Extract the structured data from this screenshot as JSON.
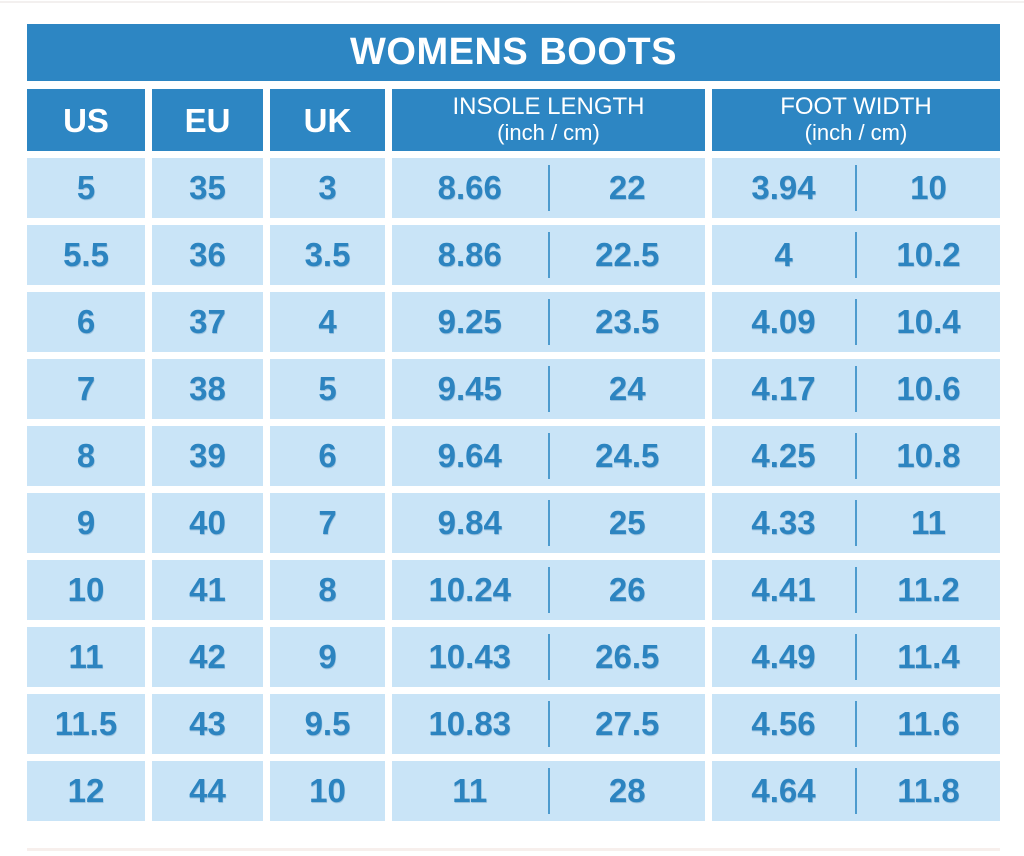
{
  "title": "WOMENS BOOTS",
  "colors": {
    "header_bg": "#2D86C3",
    "header_text": "#FFFFFF",
    "cell_bg": "#C9E4F7",
    "cell_text": "#2C84C0",
    "divider": "#4D9BCE"
  },
  "table": {
    "columns": {
      "us": "US",
      "eu": "EU",
      "uk": "UK",
      "insole": "INSOLE LENGTH",
      "insole_sub": "(inch / cm)",
      "foot": "FOOT WIDTH",
      "foot_sub": "(inch / cm)"
    },
    "rows": [
      {
        "us": "5",
        "eu": "35",
        "uk": "3",
        "insole_in": "8.66",
        "insole_cm": "22",
        "foot_in": "3.94",
        "foot_cm": "10"
      },
      {
        "us": "5.5",
        "eu": "36",
        "uk": "3.5",
        "insole_in": "8.86",
        "insole_cm": "22.5",
        "foot_in": "4",
        "foot_cm": "10.2"
      },
      {
        "us": "6",
        "eu": "37",
        "uk": "4",
        "insole_in": "9.25",
        "insole_cm": "23.5",
        "foot_in": "4.09",
        "foot_cm": "10.4"
      },
      {
        "us": "7",
        "eu": "38",
        "uk": "5",
        "insole_in": "9.45",
        "insole_cm": "24",
        "foot_in": "4.17",
        "foot_cm": "10.6"
      },
      {
        "us": "8",
        "eu": "39",
        "uk": "6",
        "insole_in": "9.64",
        "insole_cm": "24.5",
        "foot_in": "4.25",
        "foot_cm": "10.8"
      },
      {
        "us": "9",
        "eu": "40",
        "uk": "7",
        "insole_in": "9.84",
        "insole_cm": "25",
        "foot_in": "4.33",
        "foot_cm": "11"
      },
      {
        "us": "10",
        "eu": "41",
        "uk": "8",
        "insole_in": "10.24",
        "insole_cm": "26",
        "foot_in": "4.41",
        "foot_cm": "11.2"
      },
      {
        "us": "11",
        "eu": "42",
        "uk": "9",
        "insole_in": "10.43",
        "insole_cm": "26.5",
        "foot_in": "4.49",
        "foot_cm": "11.4"
      },
      {
        "us": "11.5",
        "eu": "43",
        "uk": "9.5",
        "insole_in": "10.83",
        "insole_cm": "27.5",
        "foot_in": "4.56",
        "foot_cm": "11.6"
      },
      {
        "us": "12",
        "eu": "44",
        "uk": "10",
        "insole_in": "11",
        "insole_cm": "28",
        "foot_in": "4.64",
        "foot_cm": "11.8"
      }
    ]
  },
  "chart_data": {
    "type": "table",
    "title": "WOMENS BOOTS",
    "columns": [
      "US",
      "EU",
      "UK",
      "INSOLE LENGTH (inch / cm)",
      "FOOT WIDTH (inch / cm)"
    ],
    "rows": [
      [
        "5",
        "35",
        "3",
        "8.66",
        "22",
        "3.94",
        "10"
      ],
      [
        "5.5",
        "36",
        "3.5",
        "8.86",
        "22.5",
        "4",
        "10.2"
      ],
      [
        "6",
        "37",
        "4",
        "9.25",
        "23.5",
        "4.09",
        "10.4"
      ],
      [
        "7",
        "38",
        "5",
        "9.45",
        "24",
        "4.17",
        "10.6"
      ],
      [
        "8",
        "39",
        "6",
        "9.64",
        "24.5",
        "4.25",
        "10.8"
      ],
      [
        "9",
        "40",
        "7",
        "9.84",
        "25",
        "4.33",
        "11"
      ],
      [
        "10",
        "41",
        "8",
        "10.24",
        "26",
        "4.41",
        "11.2"
      ],
      [
        "11",
        "42",
        "9",
        "10.43",
        "26.5",
        "4.49",
        "11.4"
      ],
      [
        "11.5",
        "43",
        "9.5",
        "10.83",
        "27.5",
        "4.56",
        "11.6"
      ],
      [
        "12",
        "44",
        "10",
        "11",
        "28",
        "4.64",
        "11.8"
      ]
    ]
  }
}
